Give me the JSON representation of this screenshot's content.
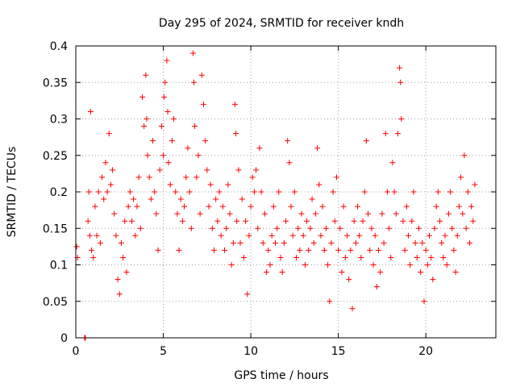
{
  "chart_data": {
    "type": "scatter",
    "title": "Day 295 of 2024, SRMTID for receiver kndh",
    "xlabel": "GPS time / hours",
    "ylabel": "SRMTID / TECUs",
    "xlim": [
      0,
      24
    ],
    "ylim": [
      0,
      0.4
    ],
    "x_ticks": [
      0,
      5,
      10,
      15,
      20
    ],
    "x_tick_labels": [
      "0",
      "5",
      "10",
      "15",
      "20"
    ],
    "y_ticks": [
      0,
      0.05,
      0.1,
      0.15,
      0.2,
      0.25,
      0.3,
      0.35,
      0.4
    ],
    "y_tick_labels": [
      "0",
      "0.05",
      "0.1",
      "0.15",
      "0.2",
      "0.25",
      "0.3",
      "0.35",
      "0.4"
    ],
    "grid": true,
    "marker": "plus",
    "color": "#ff0000",
    "series": [
      {
        "name": "SRMTID",
        "points": [
          [
            0.05,
            0.125
          ],
          [
            0.1,
            0.11
          ],
          [
            0.5,
            0.0
          ],
          [
            0.55,
            0.0
          ],
          [
            0.7,
            0.16
          ],
          [
            0.75,
            0.2
          ],
          [
            0.8,
            0.14
          ],
          [
            0.85,
            0.31
          ],
          [
            0.9,
            0.12
          ],
          [
            1.0,
            0.11
          ],
          [
            1.1,
            0.18
          ],
          [
            1.2,
            0.14
          ],
          [
            1.3,
            0.2
          ],
          [
            1.4,
            0.13
          ],
          [
            1.5,
            0.22
          ],
          [
            1.6,
            0.19
          ],
          [
            1.7,
            0.24
          ],
          [
            1.8,
            0.2
          ],
          [
            1.9,
            0.28
          ],
          [
            2.0,
            0.21
          ],
          [
            2.1,
            0.23
          ],
          [
            2.2,
            0.17
          ],
          [
            2.3,
            0.14
          ],
          [
            2.4,
            0.08
          ],
          [
            2.5,
            0.06
          ],
          [
            2.6,
            0.13
          ],
          [
            2.7,
            0.11
          ],
          [
            2.8,
            0.16
          ],
          [
            2.9,
            0.09
          ],
          [
            3.0,
            0.18
          ],
          [
            3.1,
            0.2
          ],
          [
            3.2,
            0.16
          ],
          [
            3.3,
            0.19
          ],
          [
            3.4,
            0.14
          ],
          [
            3.5,
            0.18
          ],
          [
            3.6,
            0.22
          ],
          [
            3.7,
            0.15
          ],
          [
            3.8,
            0.33
          ],
          [
            3.9,
            0.29
          ],
          [
            4.0,
            0.36
          ],
          [
            4.05,
            0.3
          ],
          [
            4.1,
            0.25
          ],
          [
            4.2,
            0.22
          ],
          [
            4.3,
            0.19
          ],
          [
            4.4,
            0.27
          ],
          [
            4.5,
            0.2
          ],
          [
            4.6,
            0.17
          ],
          [
            4.7,
            0.12
          ],
          [
            4.8,
            0.23
          ],
          [
            4.9,
            0.29
          ],
          [
            5.0,
            0.25
          ],
          [
            5.05,
            0.33
          ],
          [
            5.1,
            0.35
          ],
          [
            5.2,
            0.38
          ],
          [
            5.25,
            0.31
          ],
          [
            5.3,
            0.24
          ],
          [
            5.4,
            0.21
          ],
          [
            5.5,
            0.27
          ],
          [
            5.6,
            0.3
          ],
          [
            5.7,
            0.2
          ],
          [
            5.8,
            0.17
          ],
          [
            5.9,
            0.12
          ],
          [
            6.0,
            0.19
          ],
          [
            6.1,
            0.16
          ],
          [
            6.2,
            0.18
          ],
          [
            6.3,
            0.22
          ],
          [
            6.4,
            0.26
          ],
          [
            6.5,
            0.2
          ],
          [
            6.6,
            0.15
          ],
          [
            6.7,
            0.39
          ],
          [
            6.75,
            0.35
          ],
          [
            6.8,
            0.29
          ],
          [
            6.9,
            0.22
          ],
          [
            7.0,
            0.25
          ],
          [
            7.1,
            0.17
          ],
          [
            7.2,
            0.36
          ],
          [
            7.3,
            0.32
          ],
          [
            7.4,
            0.27
          ],
          [
            7.5,
            0.23
          ],
          [
            7.6,
            0.18
          ],
          [
            7.7,
            0.21
          ],
          [
            7.8,
            0.15
          ],
          [
            7.9,
            0.12
          ],
          [
            8.0,
            0.19
          ],
          [
            8.1,
            0.16
          ],
          [
            8.2,
            0.2
          ],
          [
            8.3,
            0.14
          ],
          [
            8.4,
            0.18
          ],
          [
            8.5,
            0.12
          ],
          [
            8.6,
            0.15
          ],
          [
            8.7,
            0.21
          ],
          [
            8.8,
            0.17
          ],
          [
            8.9,
            0.1
          ],
          [
            9.0,
            0.13
          ],
          [
            9.1,
            0.32
          ],
          [
            9.15,
            0.28
          ],
          [
            9.2,
            0.16
          ],
          [
            9.3,
            0.23
          ],
          [
            9.4,
            0.13
          ],
          [
            9.5,
            0.19
          ],
          [
            9.6,
            0.11
          ],
          [
            9.7,
            0.16
          ],
          [
            9.8,
            0.06
          ],
          [
            9.9,
            0.14
          ],
          [
            10.0,
            0.18
          ],
          [
            10.1,
            0.22
          ],
          [
            10.2,
            0.2
          ],
          [
            10.3,
            0.23
          ],
          [
            10.4,
            0.15
          ],
          [
            10.5,
            0.26
          ],
          [
            10.6,
            0.2
          ],
          [
            10.7,
            0.13
          ],
          [
            10.8,
            0.17
          ],
          [
            10.9,
            0.09
          ],
          [
            11.0,
            0.12
          ],
          [
            11.1,
            0.1
          ],
          [
            11.2,
            0.14
          ],
          [
            11.3,
            0.18
          ],
          [
            11.4,
            0.13
          ],
          [
            11.5,
            0.15
          ],
          [
            11.6,
            0.2
          ],
          [
            11.7,
            0.11
          ],
          [
            11.8,
            0.09
          ],
          [
            11.9,
            0.13
          ],
          [
            12.0,
            0.16
          ],
          [
            12.1,
            0.27
          ],
          [
            12.2,
            0.24
          ],
          [
            12.3,
            0.18
          ],
          [
            12.4,
            0.14
          ],
          [
            12.5,
            0.2
          ],
          [
            12.6,
            0.11
          ],
          [
            12.7,
            0.15
          ],
          [
            12.8,
            0.12
          ],
          [
            12.9,
            0.17
          ],
          [
            13.0,
            0.14
          ],
          [
            13.1,
            0.1
          ],
          [
            13.2,
            0.16
          ],
          [
            13.3,
            0.12
          ],
          [
            13.4,
            0.15
          ],
          [
            13.5,
            0.19
          ],
          [
            13.6,
            0.13
          ],
          [
            13.7,
            0.17
          ],
          [
            13.8,
            0.26
          ],
          [
            13.9,
            0.21
          ],
          [
            14.0,
            0.14
          ],
          [
            14.1,
            0.18
          ],
          [
            14.2,
            0.12
          ],
          [
            14.3,
            0.15
          ],
          [
            14.4,
            0.1
          ],
          [
            14.5,
            0.05
          ],
          [
            14.6,
            0.13
          ],
          [
            14.7,
            0.2
          ],
          [
            14.8,
            0.16
          ],
          [
            14.9,
            0.22
          ],
          [
            15.0,
            0.12
          ],
          [
            15.1,
            0.15
          ],
          [
            15.2,
            0.09
          ],
          [
            15.3,
            0.18
          ],
          [
            15.4,
            0.11
          ],
          [
            15.5,
            0.14
          ],
          [
            15.6,
            0.08
          ],
          [
            15.7,
            0.12
          ],
          [
            15.8,
            0.04
          ],
          [
            15.9,
            0.16
          ],
          [
            16.0,
            0.13
          ],
          [
            16.1,
            0.18
          ],
          [
            16.2,
            0.14
          ],
          [
            16.3,
            0.11
          ],
          [
            16.4,
            0.16
          ],
          [
            16.5,
            0.2
          ],
          [
            16.6,
            0.27
          ],
          [
            16.7,
            0.17
          ],
          [
            16.8,
            0.12
          ],
          [
            16.9,
            0.15
          ],
          [
            17.0,
            0.1
          ],
          [
            17.1,
            0.14
          ],
          [
            17.2,
            0.07
          ],
          [
            17.3,
            0.12
          ],
          [
            17.4,
            0.09
          ],
          [
            17.5,
            0.17
          ],
          [
            17.6,
            0.13
          ],
          [
            17.7,
            0.28
          ],
          [
            17.8,
            0.2
          ],
          [
            17.9,
            0.15
          ],
          [
            18.0,
            0.11
          ],
          [
            18.1,
            0.24
          ],
          [
            18.2,
            0.2
          ],
          [
            18.3,
            0.17
          ],
          [
            18.4,
            0.28
          ],
          [
            18.5,
            0.37
          ],
          [
            18.55,
            0.35
          ],
          [
            18.6,
            0.3
          ],
          [
            18.7,
            0.16
          ],
          [
            18.8,
            0.12
          ],
          [
            18.9,
            0.18
          ],
          [
            19.0,
            0.14
          ],
          [
            19.1,
            0.1
          ],
          [
            19.2,
            0.16
          ],
          [
            19.3,
            0.2
          ],
          [
            19.4,
            0.13
          ],
          [
            19.5,
            0.11
          ],
          [
            19.6,
            0.15
          ],
          [
            19.7,
            0.09
          ],
          [
            19.8,
            0.13
          ],
          [
            19.9,
            0.05
          ],
          [
            20.0,
            0.12
          ],
          [
            20.1,
            0.1
          ],
          [
            20.2,
            0.14
          ],
          [
            20.3,
            0.11
          ],
          [
            20.4,
            0.08
          ],
          [
            20.5,
            0.15
          ],
          [
            20.6,
            0.18
          ],
          [
            20.7,
            0.2
          ],
          [
            20.8,
            0.16
          ],
          [
            20.9,
            0.13
          ],
          [
            21.0,
            0.11
          ],
          [
            21.1,
            0.14
          ],
          [
            21.2,
            0.1
          ],
          [
            21.3,
            0.17
          ],
          [
            21.4,
            0.2
          ],
          [
            21.5,
            0.15
          ],
          [
            21.6,
            0.12
          ],
          [
            21.7,
            0.09
          ],
          [
            21.8,
            0.14
          ],
          [
            21.9,
            0.18
          ],
          [
            22.0,
            0.22
          ],
          [
            22.1,
            0.17
          ],
          [
            22.2,
            0.25
          ],
          [
            22.3,
            0.15
          ],
          [
            22.4,
            0.2
          ],
          [
            22.5,
            0.13
          ],
          [
            22.6,
            0.18
          ],
          [
            22.7,
            0.16
          ],
          [
            22.8,
            0.21
          ]
        ]
      }
    ]
  }
}
